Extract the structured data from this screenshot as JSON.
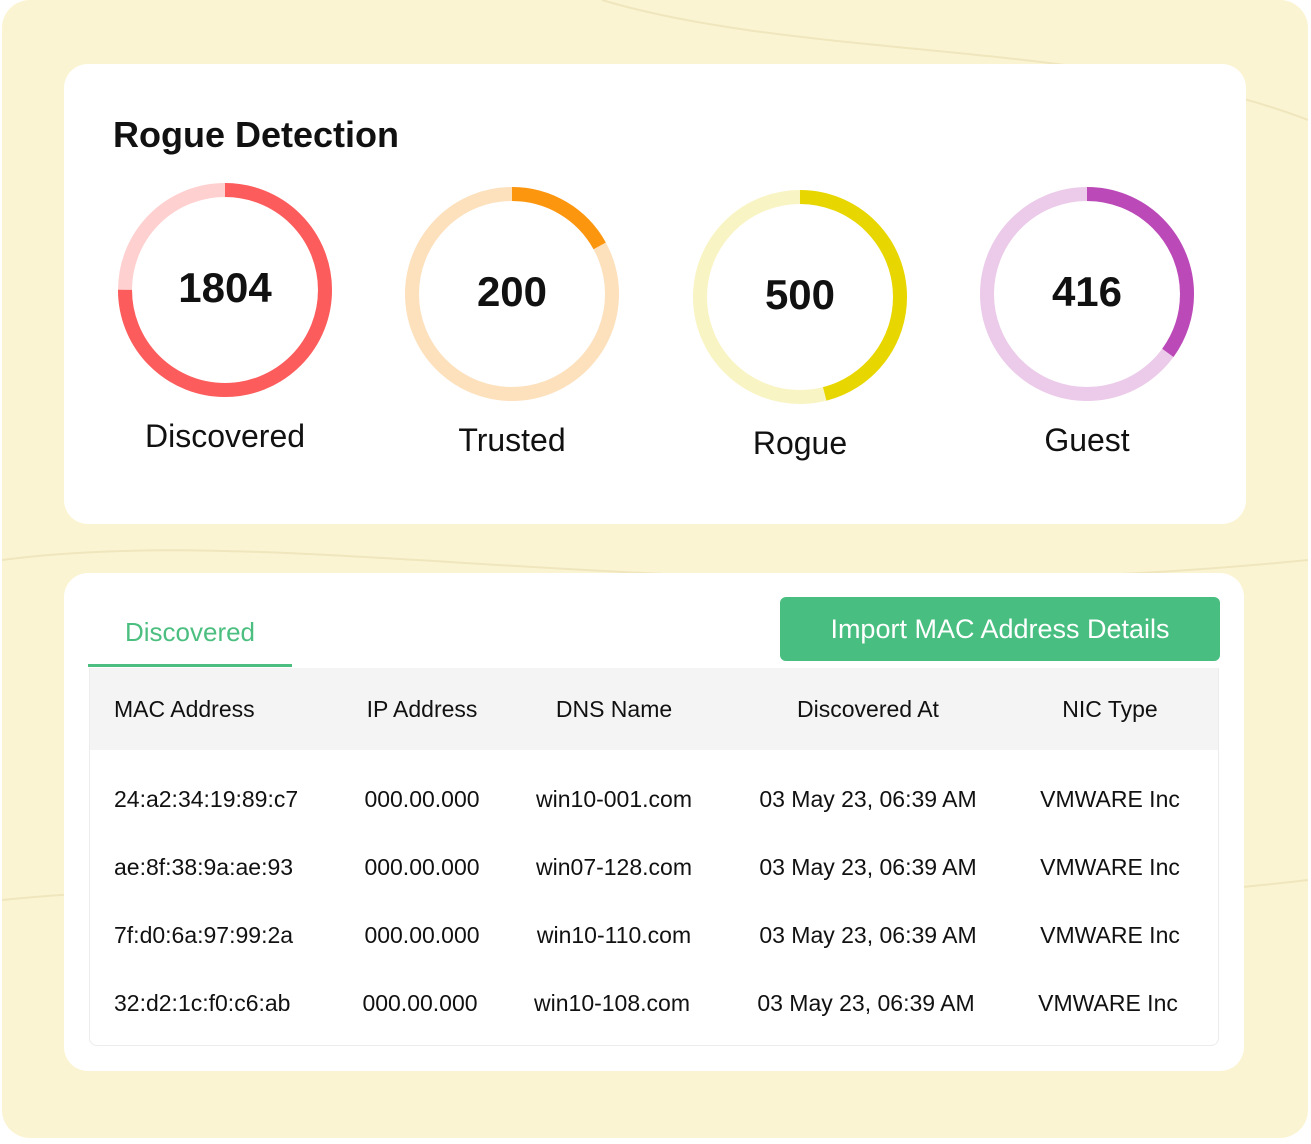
{
  "title": "Rogue Detection",
  "colors": {
    "accent": "#48bf80",
    "background": "#fbf4d2"
  },
  "stats": [
    {
      "label": "Discovered",
      "value": "1804",
      "fraction": 0.75,
      "color": "#fd5c5c",
      "track": "#ffd0d0"
    },
    {
      "label": "Trusted",
      "value": "200",
      "fraction": 0.17,
      "color": "#fd960f",
      "track": "#fde0bc"
    },
    {
      "label": "Rogue",
      "value": "500",
      "fraction": 0.46,
      "color": "#e8d600",
      "track": "#f9f4c4"
    },
    {
      "label": "Guest",
      "value": "416",
      "fraction": 0.35,
      "color": "#bb49b8",
      "track": "#ebcbe9"
    }
  ],
  "tab": "Discovered",
  "import_button": "Import MAC Address Details",
  "columns": [
    "MAC Address",
    "IP Address",
    "DNS Name",
    "Discovered At",
    "NIC Type"
  ],
  "rows": [
    [
      "24:a2:34:19:89:c7",
      "000.00.000",
      "win10-001.com",
      "03 May 23, 06:39 AM",
      "VMWARE Inc"
    ],
    [
      "ae:8f:38:9a:ae:93",
      "000.00.000",
      "win07-128.com",
      "03 May 23, 06:39 AM",
      "VMWARE Inc"
    ],
    [
      "7f:d0:6a:97:99:2a",
      "000.00.000",
      "win10-110.com",
      "03 May 23, 06:39 AM",
      "VMWARE Inc"
    ],
    [
      "32:d2:1c:f0:c6:ab",
      "000.00.000",
      "win10-108.com",
      "03 May 23, 06:39 AM",
      "VMWARE Inc"
    ]
  ]
}
